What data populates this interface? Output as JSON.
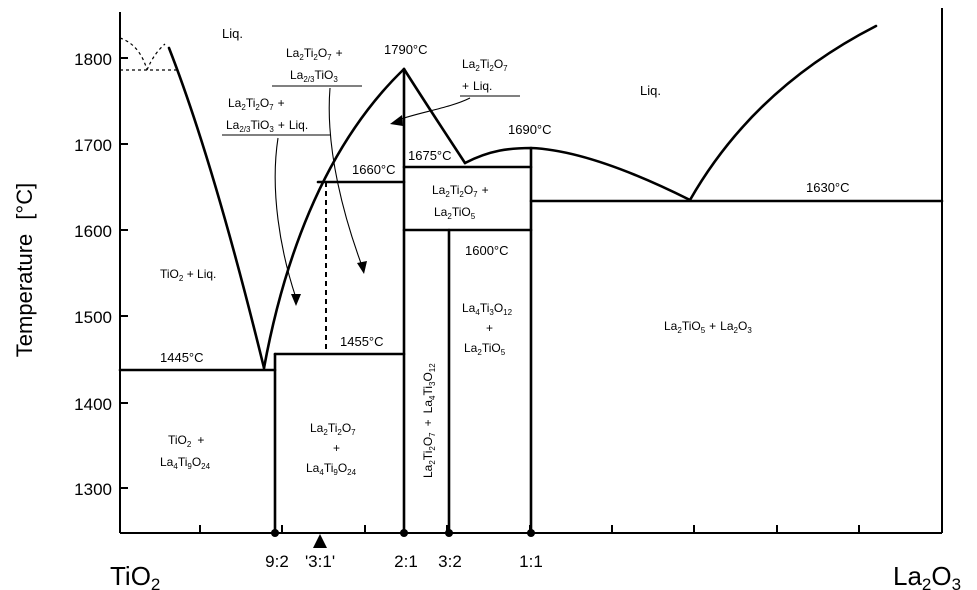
{
  "chart_data": {
    "type": "phase_diagram",
    "title": "",
    "ylabel": "Temperature",
    "yunit": "[°C]",
    "xlim_left": "TiO2",
    "xlim_right": "La2O3",
    "y_ticks": [
      1300,
      1400,
      1500,
      1600,
      1700,
      1800
    ],
    "x_marks": [
      {
        "label": "9:2",
        "x": 0.183,
        "dot": true
      },
      {
        "label": "'3:1'",
        "x": 0.25,
        "dot": false,
        "arrow": true
      },
      {
        "label": "2:1",
        "x": 0.333,
        "dot": true
      },
      {
        "label": "3:2",
        "x": 0.375,
        "dot": true
      },
      {
        "label": "1:1",
        "x": 0.5,
        "dot": true
      }
    ],
    "temperatures": [
      {
        "label": "1445°C",
        "T": 1445
      },
      {
        "label": "1455°C",
        "T": 1455
      },
      {
        "label": "1660°C",
        "T": 1660
      },
      {
        "label": "1790°C",
        "T": 1790
      },
      {
        "label": "1675°C",
        "T": 1675
      },
      {
        "label": "1690°C",
        "T": 1690
      },
      {
        "label": "1600°C",
        "T": 1600
      },
      {
        "label": "1630°C",
        "T": 1630
      }
    ],
    "regions": [
      {
        "label": "Liq.",
        "where": "upper-left"
      },
      {
        "label": "Liq.",
        "where": "upper-right"
      },
      {
        "label": "TiO2 + Liq."
      },
      {
        "label": "TiO2 + La4Ti9O24"
      },
      {
        "label": "La2Ti2O7 + La4Ti9O24"
      },
      {
        "label": "La2Ti2O7 + La4Ti3O12"
      },
      {
        "label": "La2Ti2O7 + La2TiO5"
      },
      {
        "label": "La4Ti3O12 + La2TiO5"
      },
      {
        "label": "La2TiO5 + La2O3"
      },
      {
        "label": "La2Ti2O7 + La2/3TiO3"
      },
      {
        "label": "La2Ti2O7 + La2/3TiO3 + Liq."
      },
      {
        "label": "La2Ti2O7 + Liq."
      }
    ]
  },
  "text": {
    "ylabel": "Temperature",
    "yunit": "[°C]",
    "tio2_main": "TiO",
    "tio2_sub": "2",
    "la2o3_a": "La",
    "la2o3_sub1": "2",
    "la2o3_b": "O",
    "la2o3_sub2": "3",
    "ticks": [
      "1300",
      "1400",
      "1500",
      "1600",
      "1700",
      "1800"
    ],
    "marks": [
      "9:2",
      "'3:1'",
      "2:1",
      "3:2",
      "1:1"
    ],
    "t1445": "1445°C",
    "t1455": "1455°C",
    "t1660": "1660°C",
    "t1790": "1790°C",
    "t1675": "1675°C",
    "t1690": "1690°C",
    "t1600": "1600°C",
    "t1630": "1630°C",
    "liq_left": "Liq.",
    "liq_right": "Liq.",
    "plus": "+",
    "liq_part": "Liq.",
    "la": "La",
    "ti": "Ti",
    "o": "O",
    "s2": "2",
    "s3": "3",
    "s4": "4",
    "s5": "5",
    "s7": "7",
    "s9": "9",
    "s12": "12",
    "s24": "24",
    "s23": "2/3",
    "tio": "TiO"
  },
  "colors": {
    "ink": "#000000",
    "background": "#ffffff"
  }
}
